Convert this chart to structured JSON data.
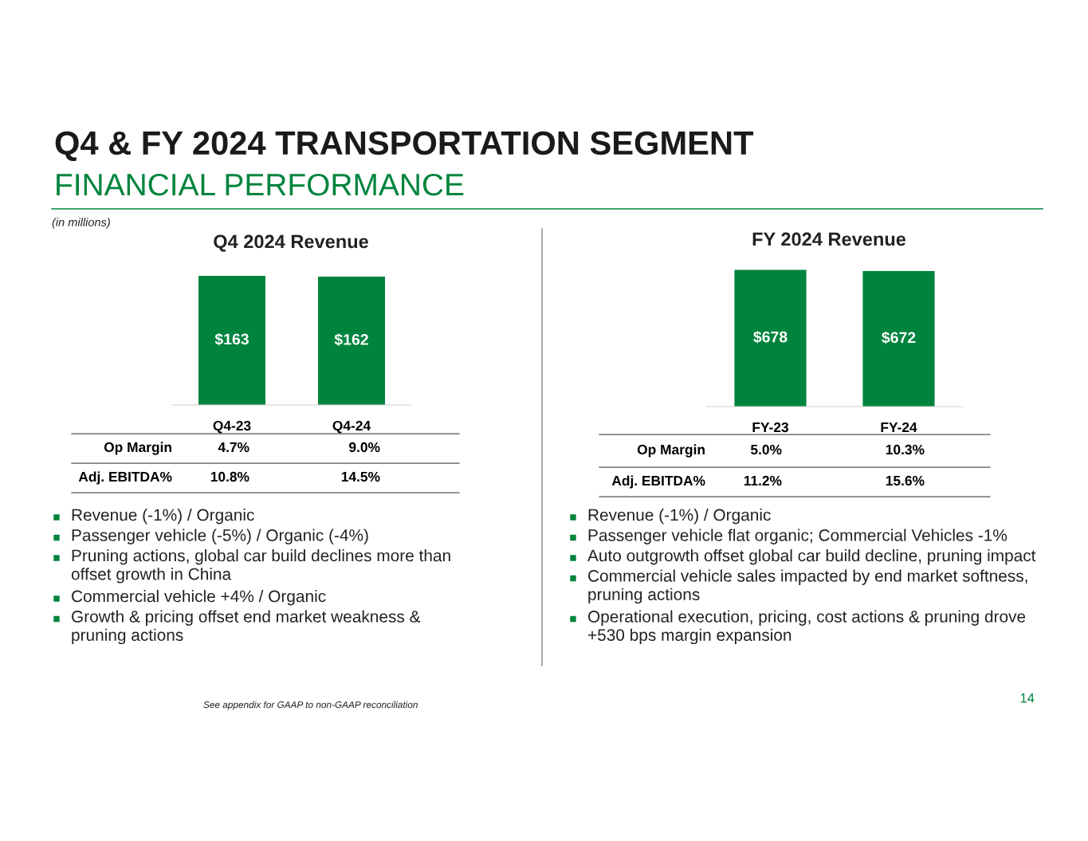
{
  "chart_data": [
    {
      "type": "other",
      "title": "Q4 & FY 2024 TRANSPORTATION SEGMENT",
      "subtitle": "FINANCIAL PERFORMANCE",
      "annotations": [
        "(in millions)",
        "See appendix for GAAP to non-GAAP reconciliation",
        "14"
      ]
    },
    {
      "type": "bar",
      "title": "Q4 2024 Revenue",
      "categories": [
        "Q4-23",
        "Q4-24"
      ],
      "values": [
        163,
        162
      ],
      "color": "#00843d",
      "value_labels": [
        "$163",
        "$162"
      ],
      "tick_labels": "x",
      "grid": false
    },
    {
      "type": "other",
      "annotations": [
        "Op Margin",
        "4.7%",
        "9.0%",
        "Adj. EBITDA%",
        "10.8%",
        "14.5%"
      ]
    },
    {
      "type": "other",
      "annotations": [
        "Revenue (-1%) / Organic",
        "Passenger vehicle (-5%) / Organic (-4%)",
        "Pruning actions, global car build declines more than\noffset growth in China",
        "Commercial vehicle +4% / Organic",
        "Growth & pricing offset end market weakness &\npruning actions"
      ]
    },
    {
      "type": "bar",
      "title": "FY 2024 Revenue",
      "categories": [
        "FY-23",
        "FY-24"
      ],
      "values": [
        678,
        672
      ],
      "color": "#00843d",
      "value_labels": [
        "$678",
        "$672"
      ],
      "tick_labels": "x",
      "grid": false
    },
    {
      "type": "other",
      "annotations": [
        "Op Margin",
        "5.0%",
        "10.3%",
        "Adj. EBITDA%",
        "11.2%",
        "15.6%"
      ]
    },
    {
      "type": "other",
      "annotations": [
        "Revenue (-1%) / Organic",
        "Passenger vehicle flat organic; Commercial Vehicles -1%",
        "Auto outgrowth offset global car build decline, pruning impact",
        "Commercial vehicle sales impacted by end market softness,\npruning actions",
        "Operational execution, pricing, cost actions & pruning drove\n+530 bps margin expansion"
      ]
    }
  ]
}
